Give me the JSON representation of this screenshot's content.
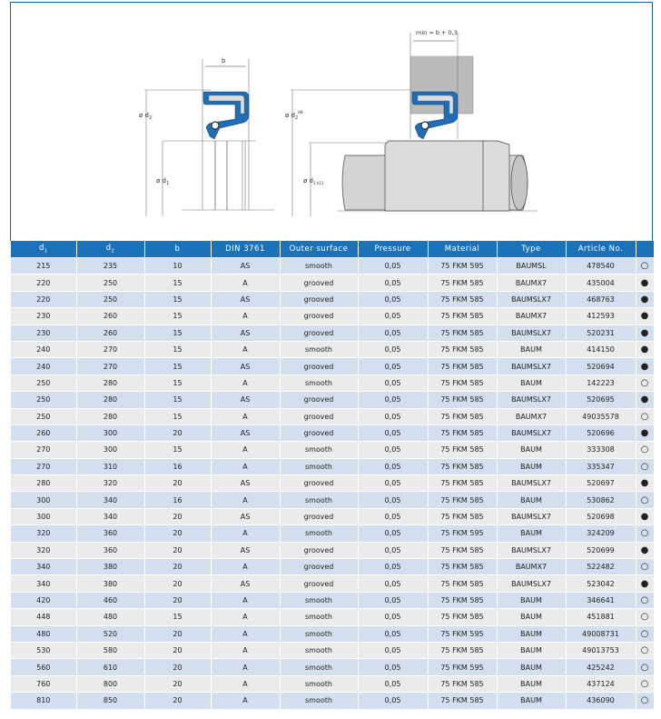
{
  "diagram": {
    "label_b": "b",
    "label_d2": "ø d",
    "label_d2_sub": "2",
    "label_d1": "ø d",
    "label_d1_sub": "1",
    "label_d2_h8": "ø d",
    "label_d2_h8_sub": "2",
    "label_d2_h8_sup": "H8",
    "label_d1_h11": "ø d",
    "label_d1_h11_sub": "1 h11",
    "label_min": "min = b + 0,3",
    "seal_color": "#1f6db5"
  },
  "table": {
    "headers": [
      {
        "label": "d",
        "sub": "1"
      },
      {
        "label": "d",
        "sub": "2"
      },
      {
        "label": "b"
      },
      {
        "label": "DIN 3761"
      },
      {
        "label": "Outer surface"
      },
      {
        "label": "Pressure"
      },
      {
        "label": "Material"
      },
      {
        "label": "Type"
      },
      {
        "label": "Article No."
      },
      {
        "label": ""
      }
    ],
    "rows": [
      [
        "215",
        "235",
        "10",
        "AS",
        "smooth",
        "0,05",
        "75 FKM 595",
        "BAUMSL",
        "478540",
        "○"
      ],
      [
        "220",
        "250",
        "15",
        "A",
        "grooved",
        "0,05",
        "75 FKM 585",
        "BAUMX7",
        "435004",
        "●"
      ],
      [
        "220",
        "250",
        "15",
        "AS",
        "grooved",
        "0,05",
        "75 FKM 585",
        "BAUMSLX7",
        "468763",
        "●"
      ],
      [
        "230",
        "260",
        "15",
        "A",
        "grooved",
        "0,05",
        "75 FKM 585",
        "BAUMX7",
        "412593",
        "●"
      ],
      [
        "230",
        "260",
        "15",
        "AS",
        "grooved",
        "0,05",
        "75 FKM 585",
        "BAUMSLX7",
        "520231",
        "●"
      ],
      [
        "240",
        "270",
        "15",
        "A",
        "smooth",
        "0,05",
        "75 FKM 585",
        "BAUM",
        "414150",
        "●"
      ],
      [
        "240",
        "270",
        "15",
        "AS",
        "grooved",
        "0,05",
        "75 FKM 585",
        "BAUMSLX7",
        "520694",
        "●"
      ],
      [
        "250",
        "280",
        "15",
        "A",
        "smooth",
        "0,05",
        "75 FKM 585",
        "BAUM",
        "142223",
        "○"
      ],
      [
        "250",
        "280",
        "15",
        "AS",
        "grooved",
        "0,05",
        "75 FKM 585",
        "BAUMSLX7",
        "520695",
        "●"
      ],
      [
        "250",
        "280",
        "15",
        "A",
        "grooved",
        "0,05",
        "75 FKM 585",
        "BAUMX7",
        "49035578",
        "○"
      ],
      [
        "260",
        "300",
        "20",
        "AS",
        "grooved",
        "0,05",
        "75 FKM 585",
        "BAUMSLX7",
        "520696",
        "●"
      ],
      [
        "270",
        "300",
        "15",
        "A",
        "smooth",
        "0,05",
        "75 FKM 585",
        "BAUM",
        "333308",
        "○"
      ],
      [
        "270",
        "310",
        "16",
        "A",
        "smooth",
        "0,05",
        "75 FKM 585",
        "BAUM",
        "335347",
        "○"
      ],
      [
        "280",
        "320",
        "20",
        "AS",
        "grooved",
        "0,05",
        "75 FKM 585",
        "BAUMSLX7",
        "520697",
        "●"
      ],
      [
        "300",
        "340",
        "16",
        "A",
        "smooth",
        "0,05",
        "75 FKM 585",
        "BAUM",
        "530862",
        "○"
      ],
      [
        "300",
        "340",
        "20",
        "AS",
        "grooved",
        "0,05",
        "75 FKM 585",
        "BAUMSLX7",
        "520698",
        "●"
      ],
      [
        "320",
        "360",
        "20",
        "A",
        "smooth",
        "0,05",
        "75 FKM 595",
        "BAUM",
        "324209",
        "○"
      ],
      [
        "320",
        "360",
        "20",
        "AS",
        "grooved",
        "0,05",
        "75 FKM 585",
        "BAUMSLX7",
        "520699",
        "●"
      ],
      [
        "340",
        "380",
        "20",
        "A",
        "grooved",
        "0,05",
        "75 FKM 585",
        "BAUMX7",
        "522482",
        "○"
      ],
      [
        "340",
        "380",
        "20",
        "AS",
        "grooved",
        "0,05",
        "75 FKM 585",
        "BAUMSLX7",
        "523042",
        "●"
      ],
      [
        "420",
        "460",
        "20",
        "A",
        "smooth",
        "0,05",
        "75 FKM 585",
        "BAUM",
        "346641",
        "○"
      ],
      [
        "448",
        "480",
        "15",
        "A",
        "smooth",
        "0,05",
        "75 FKM 585",
        "BAUM",
        "451881",
        "○"
      ],
      [
        "480",
        "520",
        "20",
        "A",
        "smooth",
        "0,05",
        "75 FKM 595",
        "BAUM",
        "49008731",
        "○"
      ],
      [
        "530",
        "580",
        "20",
        "A",
        "smooth",
        "0,05",
        "75 FKM 585",
        "BAUM",
        "49013753",
        "○"
      ],
      [
        "560",
        "610",
        "20",
        "A",
        "smooth",
        "0,05",
        "75 FKM 595",
        "BAUM",
        "425242",
        "○"
      ],
      [
        "760",
        "800",
        "20",
        "A",
        "smooth",
        "0,05",
        "75 FKM 585",
        "BAUM",
        "437124",
        "○"
      ],
      [
        "810",
        "850",
        "20",
        "A",
        "smooth",
        "0,05",
        "75 FKM 585",
        "BAUM",
        "436090",
        "○"
      ]
    ]
  }
}
